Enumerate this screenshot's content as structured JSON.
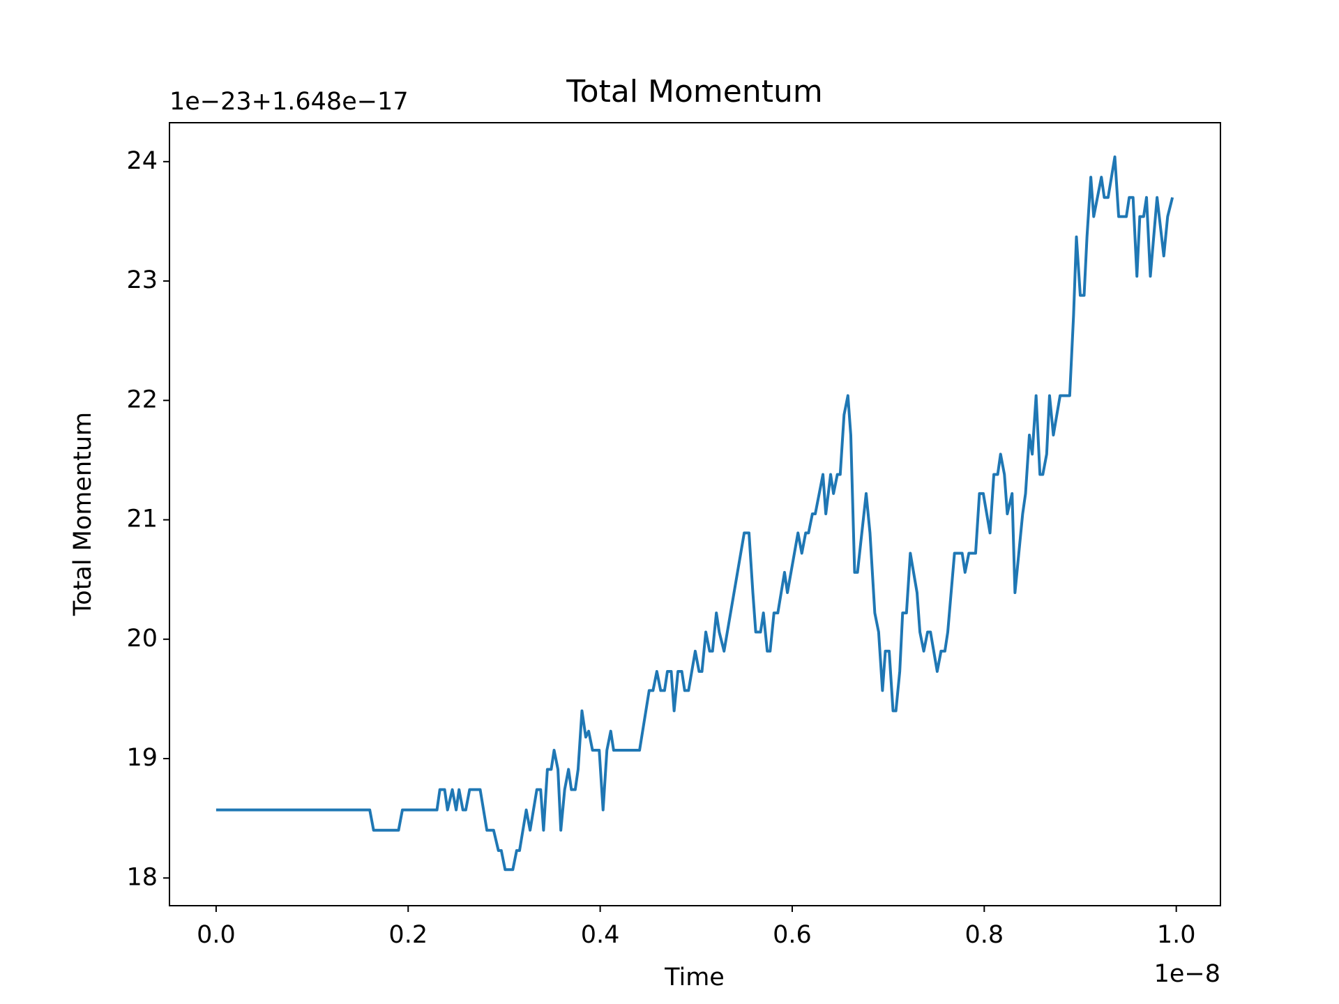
{
  "chart_data": {
    "type": "line",
    "title": "Total Momentum",
    "x_label": "Time",
    "y_label": "Total Momentum",
    "x_offset_text": "1e−8",
    "y_offset_text": "1e−23+1.648e−17",
    "xlim": [
      -0.0486,
      1.046
    ],
    "ylim": [
      17.768,
      24.326
    ],
    "xticks": [
      {
        "value": 0,
        "label": "0.0"
      },
      0.2,
      0.4,
      0.6,
      0.8,
      {
        "value": 1,
        "label": "1.0"
      }
    ],
    "yticks": [
      18,
      19,
      20,
      21,
      22,
      23,
      24
    ],
    "grid": false,
    "series": [
      {
        "name": "Total Momentum",
        "color": "#1f77b4",
        "x": [
          0,
          0.16,
          0.164,
          0.19,
          0.194,
          0.23,
          0.233,
          0.238,
          0.241,
          0.246,
          0.25,
          0.253,
          0.257,
          0.26,
          0.264,
          0.275,
          0.282,
          0.289,
          0.294,
          0.297,
          0.301,
          0.309,
          0.313,
          0.316,
          0.323,
          0.327,
          0.334,
          0.338,
          0.341,
          0.345,
          0.349,
          0.352,
          0.356,
          0.359,
          0.363,
          0.367,
          0.37,
          0.374,
          0.377,
          0.381,
          0.385,
          0.388,
          0.392,
          0.399,
          0.403,
          0.407,
          0.411,
          0.414,
          0.441,
          0.451,
          0.455,
          0.459,
          0.463,
          0.467,
          0.47,
          0.474,
          0.477,
          0.481,
          0.485,
          0.488,
          0.492,
          0.499,
          0.503,
          0.506,
          0.51,
          0.514,
          0.517,
          0.521,
          0.524,
          0.529,
          0.55,
          0.555,
          0.559,
          0.562,
          0.567,
          0.57,
          0.574,
          0.577,
          0.581,
          0.585,
          0.592,
          0.595,
          0.606,
          0.61,
          0.614,
          0.617,
          0.621,
          0.624,
          0.632,
          0.635,
          0.64,
          0.643,
          0.647,
          0.65,
          0.654,
          0.658,
          0.661,
          0.665,
          0.668,
          0.677,
          0.681,
          0.686,
          0.69,
          0.694,
          0.697,
          0.701,
          0.705,
          0.708,
          0.712,
          0.715,
          0.719,
          0.723,
          0.73,
          0.733,
          0.737,
          0.741,
          0.744,
          0.751,
          0.755,
          0.759,
          0.762,
          0.769,
          0.777,
          0.78,
          0.784,
          0.791,
          0.795,
          0.799,
          0.806,
          0.81,
          0.814,
          0.817,
          0.821,
          0.824,
          0.829,
          0.832,
          0.84,
          0.843,
          0.847,
          0.85,
          0.854,
          0.858,
          0.861,
          0.865,
          0.868,
          0.872,
          0.879,
          0.889,
          0.893,
          0.896,
          0.9,
          0.904,
          0.907,
          0.911,
          0.914,
          0.922,
          0.925,
          0.929,
          0.936,
          0.94,
          0.948,
          0.951,
          0.955,
          0.959,
          0.962,
          0.966,
          0.969,
          0.973,
          0.98,
          0.987,
          0.991,
          0.996
        ],
        "values": [
          18.57,
          18.57,
          18.4,
          18.4,
          18.57,
          18.57,
          18.74,
          18.74,
          18.57,
          18.74,
          18.57,
          18.74,
          18.57,
          18.57,
          18.74,
          18.74,
          18.4,
          18.4,
          18.23,
          18.23,
          18.07,
          18.07,
          18.23,
          18.23,
          18.57,
          18.4,
          18.74,
          18.74,
          18.4,
          18.91,
          18.91,
          19.07,
          18.91,
          18.4,
          18.74,
          18.91,
          18.74,
          18.74,
          18.91,
          19.4,
          19.18,
          19.23,
          19.07,
          19.07,
          18.57,
          19.07,
          19.23,
          19.07,
          19.07,
          19.57,
          19.57,
          19.73,
          19.57,
          19.57,
          19.73,
          19.73,
          19.4,
          19.73,
          19.73,
          19.57,
          19.57,
          19.9,
          19.73,
          19.73,
          20.06,
          19.9,
          19.9,
          20.22,
          20.06,
          19.9,
          20.89,
          20.89,
          20.39,
          20.06,
          20.06,
          20.22,
          19.9,
          19.9,
          20.22,
          20.22,
          20.56,
          20.39,
          20.89,
          20.72,
          20.89,
          20.89,
          21.05,
          21.05,
          21.38,
          21.05,
          21.38,
          21.22,
          21.38,
          21.38,
          21.88,
          22.04,
          21.71,
          20.56,
          20.56,
          21.22,
          20.89,
          20.22,
          20.06,
          19.57,
          19.9,
          19.9,
          19.4,
          19.4,
          19.73,
          20.22,
          20.22,
          20.72,
          20.39,
          20.06,
          19.9,
          20.06,
          20.06,
          19.73,
          19.9,
          19.9,
          20.06,
          20.72,
          20.72,
          20.56,
          20.72,
          20.72,
          21.22,
          21.22,
          20.89,
          21.38,
          21.38,
          21.55,
          21.38,
          21.05,
          21.22,
          20.39,
          21.05,
          21.22,
          21.71,
          21.55,
          22.04,
          21.38,
          21.38,
          21.55,
          22.04,
          21.71,
          22.04,
          22.04,
          22.71,
          23.37,
          22.88,
          22.88,
          23.37,
          23.87,
          23.54,
          23.87,
          23.7,
          23.7,
          24.04,
          23.54,
          23.54,
          23.7,
          23.7,
          23.04,
          23.54,
          23.54,
          23.7,
          23.04,
          23.7,
          23.21,
          23.54,
          23.7
        ]
      }
    ]
  }
}
